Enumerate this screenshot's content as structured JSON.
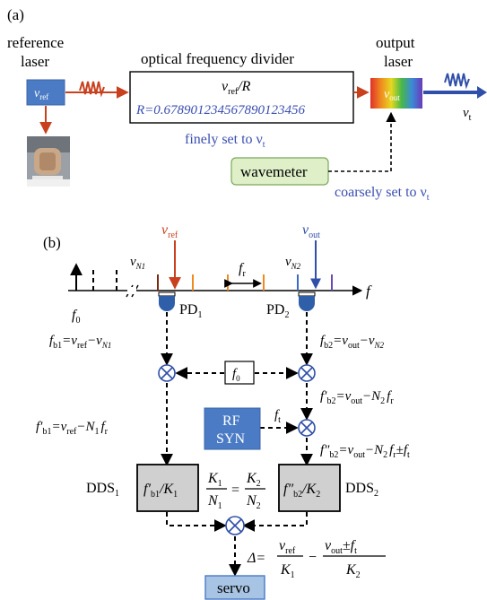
{
  "panel_a": {
    "label": "(a)",
    "reference_laser": {
      "line1": "reference",
      "line2": "laser",
      "symbol": "ν",
      "sub": "ref"
    },
    "divider": {
      "title": "optical frequency divider",
      "formula_nu": "ν",
      "formula_sub": "ref",
      "formula_rest": "/R",
      "ratio": "R=0.67890123456789012345​6",
      "finely": "finely set to ν",
      "finely_sub": "t"
    },
    "output_laser": {
      "line1": "output",
      "line2": "laser",
      "symbol": "ν",
      "sub": "out",
      "beam_symbol": "ν",
      "beam_sub": "t"
    },
    "wavemeter": "wavemeter",
    "coarsely": "coarsely set to ν",
    "coarsely_sub": "t",
    "colors": {
      "ref": "#c8401e",
      "out": "#2f4fa8",
      "text_blue": "#3b4eb0",
      "box_blue": "#4a7bc4",
      "green": "#dff0c8",
      "gray": "#d0d0d0"
    }
  },
  "panel_b": {
    "label": "(b)",
    "nu_ref": "ν",
    "nu_ref_sub": "ref",
    "nu_out": "ν",
    "nu_out_sub": "out",
    "nu_n1": "ν",
    "nu_n1_sub": "N1",
    "nu_n2": "ν",
    "nu_n2_sub": "N2",
    "fr": "f",
    "fr_sub": "r",
    "f_axis": "f",
    "f0": "f",
    "f0_sub": "0",
    "pd1": "PD",
    "pd1_sub": "1",
    "pd2": "PD",
    "pd2_sub": "2",
    "fb1": "f",
    "fb1_sub": "b1",
    "fb1_eq": "=ν",
    "fb1_ref": "ref",
    "fb1_minus": "−ν",
    "fb1_n1": "N1",
    "fb2": "f",
    "fb2_sub": "b2",
    "fb2_eq": "=ν",
    "fb2_out": "out",
    "fb2_minus": "−ν",
    "fb2_n2": "N2",
    "f0_box": "f",
    "f0_box_sub": "0",
    "fb2p": "f′",
    "fb2p_sub": "b2",
    "fb2p_eq": "=ν",
    "fb2p_out": "out",
    "fb2p_rest": "−N",
    "fb2p_n": "2",
    "fb2p_fr": "f",
    "fb2p_fr_sub": "r",
    "fb1p": "f′",
    "fb1p_sub": "b1",
    "fb1p_eq": "=ν",
    "fb1p_ref": "ref",
    "fb1p_rest": "−N",
    "fb1p_n": "1",
    "fb1p_fr": "f",
    "fb1p_fr_sub": "r",
    "rf_line1": "RF",
    "rf_line2": "SYN",
    "ft": "f",
    "ft_sub": "t",
    "fb2pp": "f″",
    "fb2pp_sub": "b2",
    "fb2pp_eq": "=ν",
    "fb2pp_out": "out",
    "fb2pp_rest": "−N",
    "fb2pp_n": "2",
    "fb2pp_fr": "f",
    "fb2pp_fr_sub": "r",
    "fb2pp_pm": "±f",
    "fb2pp_t": "t",
    "dds1": "DDS",
    "dds1_sub": "1",
    "dds2": "DDS",
    "dds2_sub": "2",
    "dds1_box": "f′",
    "dds1_box_sub": "b1",
    "dds1_box_div": "/K",
    "dds1_box_k": "1",
    "dds2_box": "f″",
    "dds2_box_sub": "b2",
    "dds2_box_div": "/K",
    "dds2_box_k": "2",
    "ratio_k1": "K",
    "ratio_k1_sub": "1",
    "ratio_n1": "N",
    "ratio_n1_sub": "1",
    "ratio_eq": "=",
    "ratio_k2": "K",
    "ratio_k2_sub": "2",
    "ratio_n2": "N",
    "ratio_n2_sub": "2",
    "delta": "Δ=",
    "delta_num1": "ν",
    "delta_num1_sub": "ref",
    "delta_den1": "K",
    "delta_den1_sub": "1",
    "delta_minus": "−",
    "delta_num2": "ν",
    "delta_num2_sub": "out",
    "delta_num2_pm": "±f",
    "delta_num2_t": "t",
    "delta_den2": "K",
    "delta_den2_sub": "2",
    "servo": "servo"
  }
}
